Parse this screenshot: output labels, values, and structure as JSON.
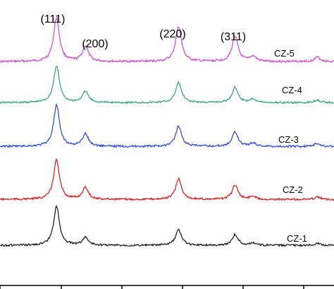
{
  "chart_data": {
    "type": "line",
    "title": "",
    "xlabel": "",
    "ylabel": "",
    "grid": false,
    "legend": "none",
    "x_ticks_labeled": false,
    "peak_annotations": [
      {
        "label": "(111)",
        "x": 28.8
      },
      {
        "label": "(200)",
        "x": 33.3
      },
      {
        "label": "(220)",
        "x": 47.8
      },
      {
        "label": "(311)",
        "x": 56.6
      }
    ],
    "series": [
      {
        "name": "CZ-5",
        "color": "#cc44cc",
        "baseline": 0.08,
        "peaks": [
          {
            "x": 28.8,
            "h": 1.0
          },
          {
            "x": 33.3,
            "h": 0.35
          },
          {
            "x": 47.8,
            "h": 0.8
          },
          {
            "x": 56.6,
            "h": 0.58
          },
          {
            "x": 59.4,
            "h": 0.12
          },
          {
            "x": 69.4,
            "h": 0.1
          }
        ]
      },
      {
        "name": "CZ-4",
        "color": "#2aa07a",
        "baseline": 0.08,
        "peaks": [
          {
            "x": 28.8,
            "h": 1.0
          },
          {
            "x": 33.3,
            "h": 0.3
          },
          {
            "x": 47.8,
            "h": 0.55
          },
          {
            "x": 56.6,
            "h": 0.42
          },
          {
            "x": 59.4,
            "h": 0.1
          },
          {
            "x": 69.4,
            "h": 0.08
          }
        ]
      },
      {
        "name": "CZ-3",
        "color": "#2244dd",
        "baseline": 0.08,
        "peaks": [
          {
            "x": 28.8,
            "h": 1.0
          },
          {
            "x": 33.3,
            "h": 0.3
          },
          {
            "x": 47.8,
            "h": 0.5
          },
          {
            "x": 56.6,
            "h": 0.36
          },
          {
            "x": 59.4,
            "h": 0.08
          },
          {
            "x": 69.4,
            "h": 0.07
          }
        ]
      },
      {
        "name": "CZ-2",
        "color": "#dd1111",
        "baseline": 0.08,
        "peaks": [
          {
            "x": 28.8,
            "h": 1.0
          },
          {
            "x": 33.3,
            "h": 0.3
          },
          {
            "x": 47.8,
            "h": 0.52
          },
          {
            "x": 56.6,
            "h": 0.36
          },
          {
            "x": 59.4,
            "h": 0.08
          },
          {
            "x": 69.4,
            "h": 0.06
          }
        ]
      },
      {
        "name": "CZ-1",
        "color": "#111111",
        "baseline": 0.08,
        "peaks": [
          {
            "x": 28.8,
            "h": 1.0
          },
          {
            "x": 33.3,
            "h": 0.2
          },
          {
            "x": 47.8,
            "h": 0.4
          },
          {
            "x": 56.6,
            "h": 0.28
          },
          {
            "x": 59.4,
            "h": 0.06
          },
          {
            "x": 69.4,
            "h": 0.05
          }
        ]
      }
    ]
  }
}
